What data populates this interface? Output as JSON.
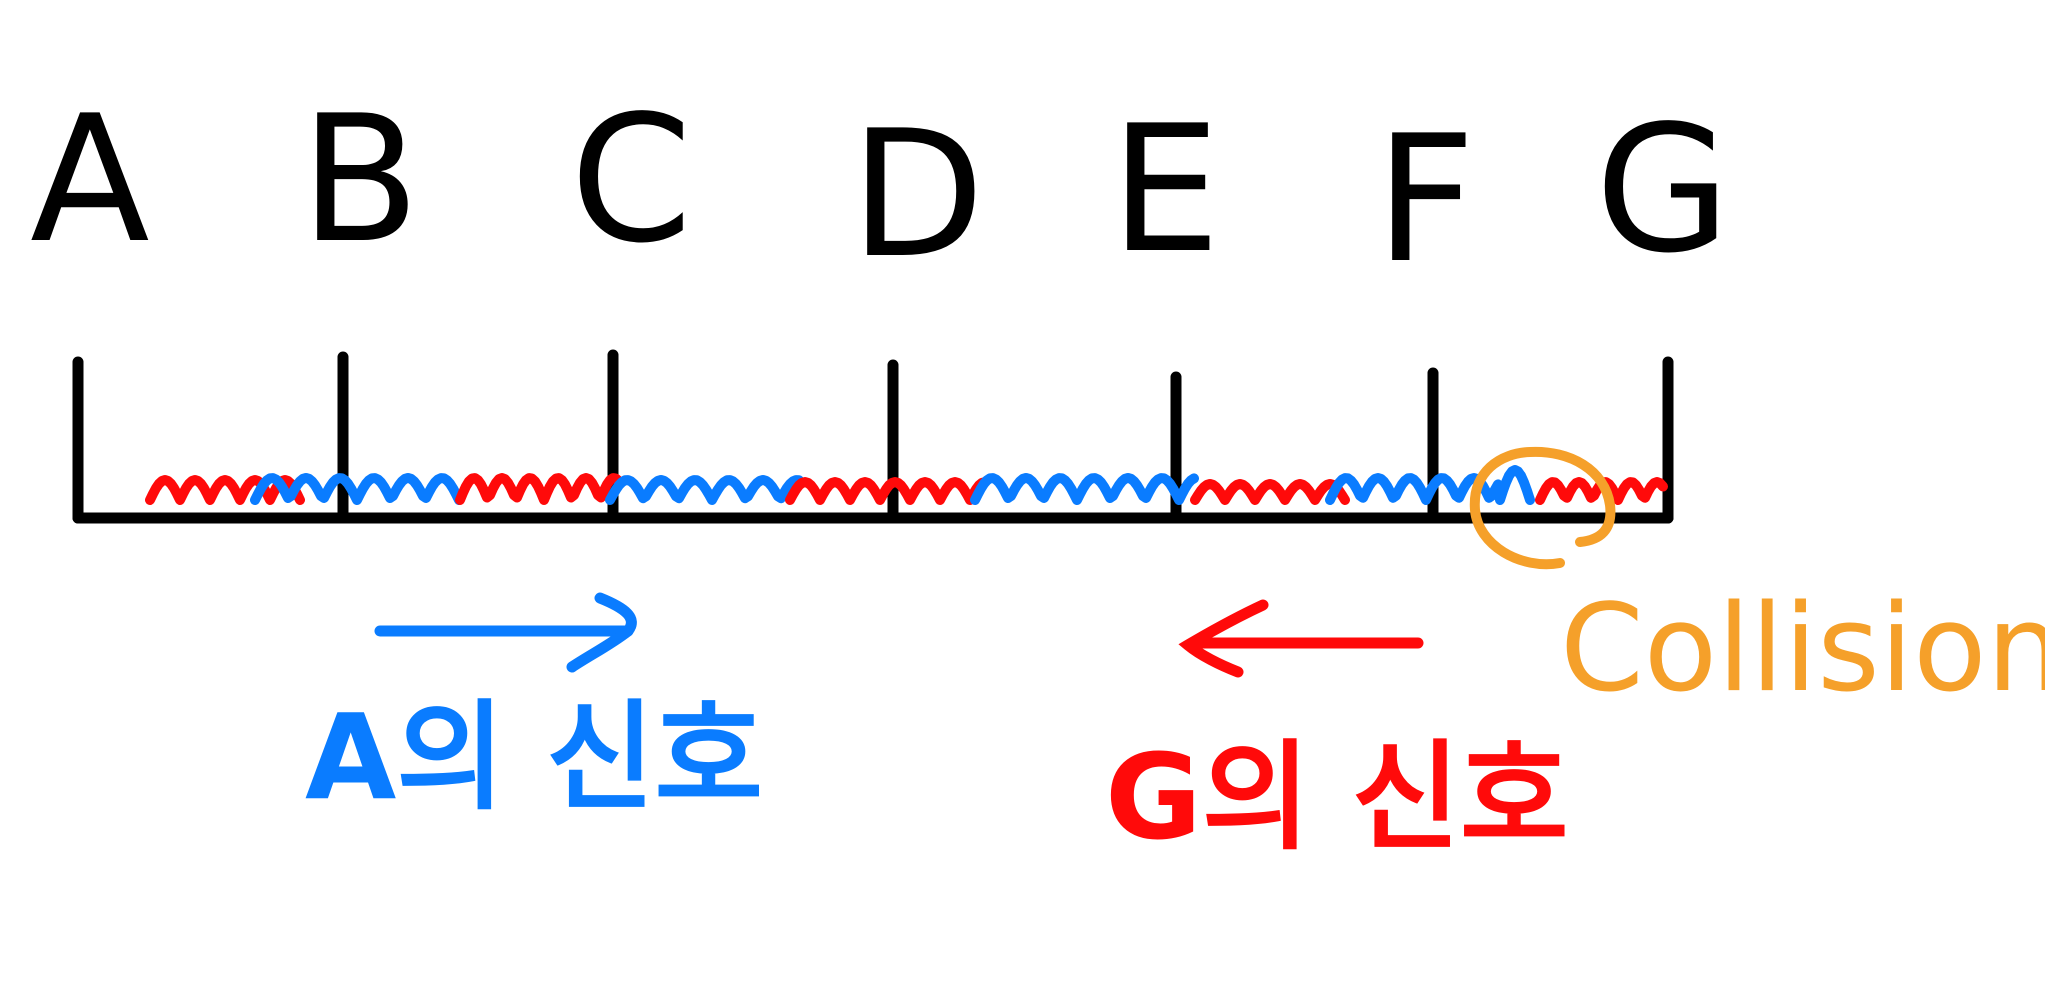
{
  "nodes": [
    {
      "id": "A",
      "label": "A"
    },
    {
      "id": "B",
      "label": "B"
    },
    {
      "id": "C",
      "label": "C"
    },
    {
      "id": "D",
      "label": "D"
    },
    {
      "id": "E",
      "label": "E"
    },
    {
      "id": "F",
      "label": "F"
    },
    {
      "id": "G",
      "label": "G"
    }
  ],
  "signals": {
    "a": {
      "caption": "A의 신호",
      "direction": "right",
      "color": "#0a7cff"
    },
    "g": {
      "caption": "G의 신호",
      "direction": "left",
      "color": "#ff0a0a"
    }
  },
  "collision": {
    "label": "Collision",
    "color": "#f5a02a"
  },
  "colors": {
    "bus": "#000000"
  }
}
